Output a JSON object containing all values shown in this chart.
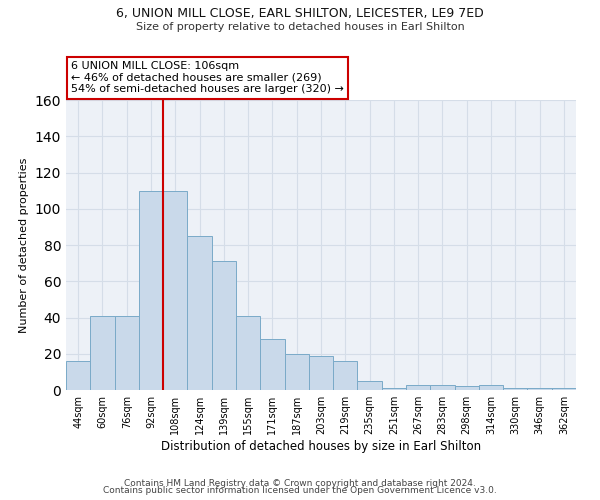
{
  "title_line1": "6, UNION MILL CLOSE, EARL SHILTON, LEICESTER, LE9 7ED",
  "title_line2": "Size of property relative to detached houses in Earl Shilton",
  "xlabel": "Distribution of detached houses by size in Earl Shilton",
  "ylabel": "Number of detached properties",
  "categories": [
    "44sqm",
    "60sqm",
    "76sqm",
    "92sqm",
    "108sqm",
    "124sqm",
    "139sqm",
    "155sqm",
    "171sqm",
    "187sqm",
    "203sqm",
    "219sqm",
    "235sqm",
    "251sqm",
    "267sqm",
    "283sqm",
    "298sqm",
    "314sqm",
    "330sqm",
    "346sqm",
    "362sqm"
  ],
  "values": [
    16,
    41,
    41,
    110,
    110,
    85,
    71,
    41,
    28,
    20,
    19,
    16,
    5,
    1,
    3,
    3,
    2,
    3,
    1,
    1,
    1
  ],
  "bar_color": "#c9d9ea",
  "bar_edge_color": "#7aaac8",
  "vline_color": "#cc0000",
  "vline_x": 3.5,
  "annotation_text": "6 UNION MILL CLOSE: 106sqm\n← 46% of detached houses are smaller (269)\n54% of semi-detached houses are larger (320) →",
  "annotation_box_color": "#ffffff",
  "annotation_box_edge_color": "#cc0000",
  "footer_line1": "Contains HM Land Registry data © Crown copyright and database right 2024.",
  "footer_line2": "Contains public sector information licensed under the Open Government Licence v3.0.",
  "ylim": [
    0,
    160
  ],
  "yticks": [
    0,
    20,
    40,
    60,
    80,
    100,
    120,
    140,
    160
  ],
  "grid_color": "#d5dde8",
  "background_color": "#edf1f7",
  "fig_background": "#ffffff",
  "title_fontsize": 9,
  "subtitle_fontsize": 8,
  "ylabel_fontsize": 8,
  "xlabel_fontsize": 8.5,
  "tick_fontsize": 7,
  "annot_fontsize": 8,
  "footer_fontsize": 6.5
}
